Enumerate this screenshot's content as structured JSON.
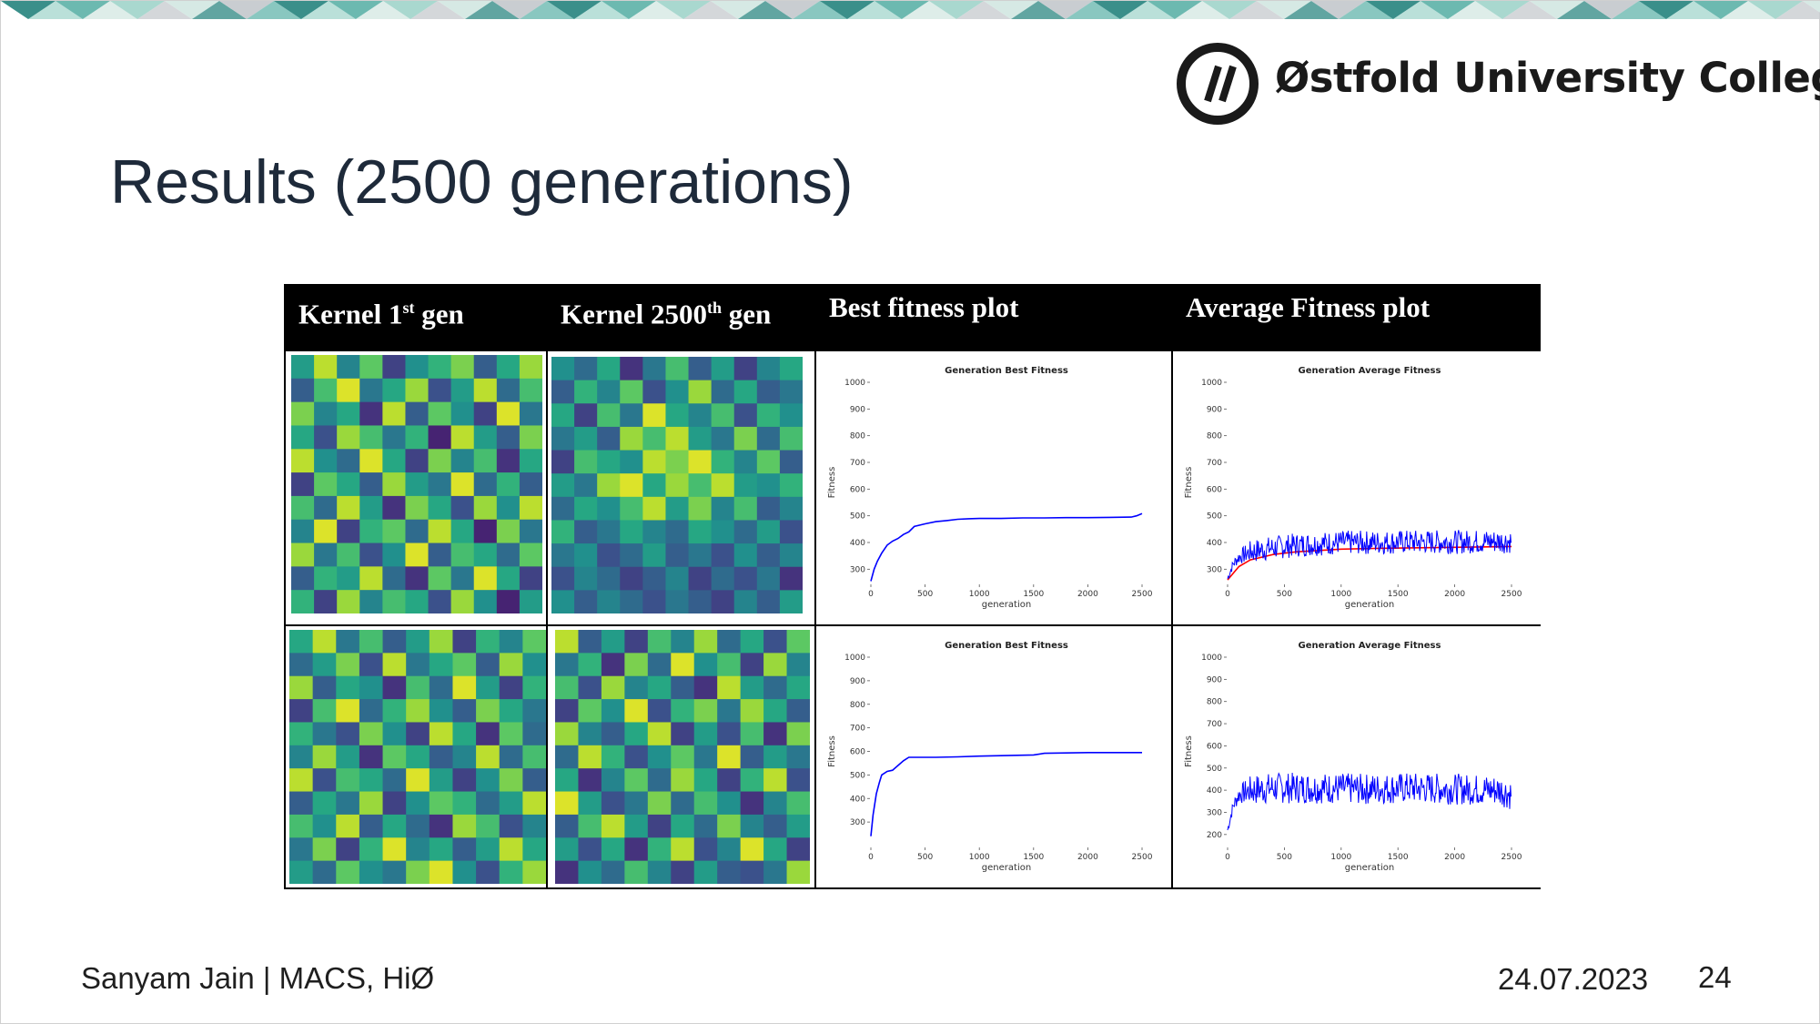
{
  "slide": {
    "title": "Results (2500 generations)",
    "logo_text": "Østfold University College",
    "footer_left": "Sanyam Jain | MACS, HiØ",
    "footer_date": "24.07.2023",
    "page_number": "24",
    "banner_colors": [
      "#3a8f8a",
      "#6cb9b0",
      "#a9d8cf",
      "#d6e9e4",
      "#c9cdd1"
    ]
  },
  "table": {
    "headers": [
      {
        "pre": "Kernel 1",
        "sup": "st",
        "post": " gen"
      },
      {
        "pre": "Kernel 2500",
        "sup": "th",
        "post": " gen"
      },
      {
        "pre": "Best fitness plot",
        "sup": "",
        "post": ""
      },
      {
        "pre": "Average Fitness plot",
        "sup": "",
        "post": ""
      }
    ]
  },
  "chart_data": [
    {
      "type": "heatmap",
      "id": "row1-kernel-1st-gen",
      "rows": 11,
      "cols": 11,
      "colormap": "viridis",
      "values": [
        [
          0.55,
          0.9,
          0.45,
          0.75,
          0.2,
          0.5,
          0.65,
          0.8,
          0.3,
          0.6,
          0.85
        ],
        [
          0.3,
          0.7,
          0.95,
          0.4,
          0.6,
          0.85,
          0.25,
          0.55,
          0.9,
          0.35,
          0.7
        ],
        [
          0.8,
          0.45,
          0.6,
          0.15,
          0.9,
          0.3,
          0.75,
          0.5,
          0.2,
          0.95,
          0.4
        ],
        [
          0.6,
          0.25,
          0.85,
          0.7,
          0.4,
          0.65,
          0.1,
          0.9,
          0.55,
          0.3,
          0.8
        ],
        [
          0.9,
          0.5,
          0.35,
          0.95,
          0.6,
          0.2,
          0.8,
          0.45,
          0.7,
          0.15,
          0.6
        ],
        [
          0.2,
          0.75,
          0.6,
          0.3,
          0.85,
          0.55,
          0.4,
          0.95,
          0.35,
          0.65,
          0.3
        ],
        [
          0.7,
          0.35,
          0.9,
          0.55,
          0.15,
          0.8,
          0.6,
          0.25,
          0.85,
          0.5,
          0.9
        ],
        [
          0.45,
          0.95,
          0.2,
          0.65,
          0.75,
          0.35,
          0.9,
          0.6,
          0.1,
          0.8,
          0.4
        ],
        [
          0.85,
          0.4,
          0.7,
          0.25,
          0.5,
          0.95,
          0.3,
          0.7,
          0.6,
          0.35,
          0.75
        ],
        [
          0.3,
          0.65,
          0.55,
          0.9,
          0.35,
          0.15,
          0.75,
          0.4,
          0.95,
          0.6,
          0.2
        ],
        [
          0.65,
          0.2,
          0.85,
          0.45,
          0.7,
          0.6,
          0.25,
          0.85,
          0.5,
          0.1,
          0.55
        ]
      ]
    },
    {
      "type": "heatmap",
      "id": "row1-kernel-2500th-gen",
      "rows": 11,
      "cols": 11,
      "colormap": "viridis",
      "values": [
        [
          0.5,
          0.35,
          0.6,
          0.15,
          0.4,
          0.7,
          0.3,
          0.55,
          0.2,
          0.45,
          0.6
        ],
        [
          0.3,
          0.65,
          0.45,
          0.75,
          0.25,
          0.5,
          0.85,
          0.35,
          0.6,
          0.3,
          0.4
        ],
        [
          0.6,
          0.2,
          0.7,
          0.4,
          0.95,
          0.6,
          0.45,
          0.7,
          0.25,
          0.65,
          0.5
        ],
        [
          0.4,
          0.55,
          0.3,
          0.85,
          0.7,
          0.9,
          0.55,
          0.4,
          0.8,
          0.35,
          0.7
        ],
        [
          0.2,
          0.7,
          0.6,
          0.5,
          0.9,
          0.8,
          0.95,
          0.65,
          0.45,
          0.75,
          0.3
        ],
        [
          0.55,
          0.4,
          0.85,
          0.95,
          0.6,
          0.85,
          0.7,
          0.9,
          0.55,
          0.5,
          0.65
        ],
        [
          0.35,
          0.6,
          0.5,
          0.7,
          0.9,
          0.55,
          0.8,
          0.45,
          0.7,
          0.3,
          0.45
        ],
        [
          0.65,
          0.3,
          0.4,
          0.6,
          0.45,
          0.35,
          0.6,
          0.5,
          0.35,
          0.55,
          0.25
        ],
        [
          0.4,
          0.5,
          0.25,
          0.35,
          0.55,
          0.3,
          0.4,
          0.25,
          0.5,
          0.3,
          0.45
        ],
        [
          0.25,
          0.45,
          0.35,
          0.2,
          0.3,
          0.45,
          0.2,
          0.35,
          0.25,
          0.4,
          0.15
        ],
        [
          0.5,
          0.3,
          0.45,
          0.35,
          0.25,
          0.4,
          0.3,
          0.2,
          0.45,
          0.3,
          0.55
        ]
      ]
    },
    {
      "type": "line",
      "id": "row1-best-fitness",
      "title": "Generation Best Fitness",
      "xlabel": "generation",
      "ylabel": "Fitness",
      "xlim": [
        0,
        2500
      ],
      "ylim": [
        250,
        1000
      ],
      "x_ticks": [
        0,
        500,
        1000,
        1500,
        2000,
        2500
      ],
      "y_ticks": [
        300,
        400,
        500,
        600,
        700,
        800,
        900,
        1000
      ],
      "series": [
        {
          "color": "#0000ff",
          "noise": 0,
          "x": [
            0,
            30,
            60,
            100,
            150,
            200,
            250,
            300,
            350,
            400,
            500,
            600,
            700,
            800,
            900,
            1000,
            1200,
            1400,
            1600,
            1800,
            2000,
            2200,
            2400,
            2450,
            2500
          ],
          "y": [
            255,
            300,
            330,
            360,
            390,
            405,
            415,
            430,
            440,
            460,
            470,
            478,
            482,
            487,
            489,
            490,
            490,
            492,
            492,
            493,
            493,
            494,
            495,
            500,
            508
          ]
        }
      ]
    },
    {
      "type": "line",
      "id": "row1-average-fitness",
      "title": "Generation Average Fitness",
      "xlabel": "generation",
      "ylabel": "Fitness",
      "xlim": [
        0,
        2500
      ],
      "ylim": [
        250,
        1000
      ],
      "x_ticks": [
        0,
        500,
        1000,
        1500,
        2000,
        2500
      ],
      "y_ticks": [
        300,
        400,
        500,
        600,
        700,
        800,
        900,
        1000
      ],
      "series": [
        {
          "color": "#ff0000",
          "noise": 0,
          "x": [
            0,
            100,
            200,
            400,
            600,
            800,
            1000,
            1300,
            1600,
            2000,
            2500
          ],
          "y": [
            260,
            310,
            335,
            355,
            365,
            370,
            375,
            378,
            380,
            382,
            385
          ]
        },
        {
          "color": "#0000ff",
          "noise": 45,
          "x": [
            0,
            50,
            100,
            200,
            400,
            600,
            800,
            1000,
            1300,
            1600,
            2000,
            2500
          ],
          "y": [
            265,
            320,
            345,
            365,
            380,
            390,
            395,
            400,
            400,
            402,
            402,
            405
          ]
        }
      ]
    },
    {
      "type": "heatmap",
      "id": "row2-kernel-1st-gen",
      "rows": 11,
      "cols": 11,
      "colormap": "viridis",
      "values": [
        [
          0.6,
          0.9,
          0.4,
          0.7,
          0.3,
          0.55,
          0.85,
          0.2,
          0.65,
          0.45,
          0.75
        ],
        [
          0.35,
          0.55,
          0.8,
          0.25,
          0.9,
          0.4,
          0.6,
          0.75,
          0.3,
          0.85,
          0.5
        ],
        [
          0.85,
          0.3,
          0.6,
          0.5,
          0.15,
          0.7,
          0.35,
          0.95,
          0.55,
          0.2,
          0.65
        ],
        [
          0.2,
          0.7,
          0.95,
          0.35,
          0.65,
          0.85,
          0.5,
          0.3,
          0.8,
          0.6,
          0.4
        ],
        [
          0.65,
          0.4,
          0.25,
          0.8,
          0.5,
          0.2,
          0.9,
          0.6,
          0.15,
          0.75,
          0.35
        ],
        [
          0.45,
          0.85,
          0.55,
          0.15,
          0.75,
          0.6,
          0.3,
          0.45,
          0.9,
          0.35,
          0.7
        ],
        [
          0.9,
          0.25,
          0.7,
          0.6,
          0.35,
          0.95,
          0.55,
          0.2,
          0.5,
          0.8,
          0.3
        ],
        [
          0.3,
          0.6,
          0.4,
          0.85,
          0.2,
          0.5,
          0.75,
          0.65,
          0.35,
          0.55,
          0.9
        ],
        [
          0.7,
          0.5,
          0.9,
          0.3,
          0.6,
          0.35,
          0.15,
          0.85,
          0.7,
          0.25,
          0.45
        ],
        [
          0.4,
          0.8,
          0.2,
          0.65,
          0.95,
          0.45,
          0.6,
          0.3,
          0.55,
          0.9,
          0.6
        ],
        [
          0.55,
          0.35,
          0.75,
          0.5,
          0.4,
          0.8,
          0.95,
          0.5,
          0.25,
          0.65,
          0.85
        ]
      ]
    },
    {
      "type": "heatmap",
      "id": "row2-kernel-2500th-gen",
      "rows": 11,
      "cols": 11,
      "colormap": "viridis",
      "values": [
        [
          0.9,
          0.3,
          0.55,
          0.2,
          0.7,
          0.45,
          0.85,
          0.35,
          0.6,
          0.25,
          0.75
        ],
        [
          0.4,
          0.65,
          0.15,
          0.8,
          0.35,
          0.95,
          0.5,
          0.7,
          0.2,
          0.85,
          0.45
        ],
        [
          0.7,
          0.25,
          0.85,
          0.45,
          0.6,
          0.3,
          0.15,
          0.9,
          0.55,
          0.35,
          0.6
        ],
        [
          0.2,
          0.75,
          0.5,
          0.95,
          0.25,
          0.65,
          0.8,
          0.4,
          0.85,
          0.6,
          0.3
        ],
        [
          0.85,
          0.45,
          0.3,
          0.6,
          0.9,
          0.2,
          0.55,
          0.25,
          0.7,
          0.15,
          0.8
        ],
        [
          0.35,
          0.9,
          0.65,
          0.25,
          0.5,
          0.75,
          0.4,
          0.95,
          0.3,
          0.55,
          0.4
        ],
        [
          0.6,
          0.15,
          0.45,
          0.75,
          0.35,
          0.85,
          0.6,
          0.2,
          0.65,
          0.9,
          0.25
        ],
        [
          0.95,
          0.55,
          0.25,
          0.4,
          0.8,
          0.35,
          0.7,
          0.5,
          0.15,
          0.45,
          0.7
        ],
        [
          0.3,
          0.7,
          0.9,
          0.55,
          0.2,
          0.6,
          0.35,
          0.8,
          0.45,
          0.3,
          0.55
        ],
        [
          0.55,
          0.25,
          0.6,
          0.15,
          0.65,
          0.9,
          0.25,
          0.45,
          0.95,
          0.6,
          0.2
        ],
        [
          0.15,
          0.5,
          0.35,
          0.7,
          0.45,
          0.2,
          0.55,
          0.3,
          0.25,
          0.4,
          0.85
        ]
      ]
    },
    {
      "type": "line",
      "id": "row2-best-fitness",
      "title": "Generation Best Fitness",
      "xlabel": "generation",
      "ylabel": "Fitness",
      "xlim": [
        0,
        2500
      ],
      "ylim": [
        200,
        1000
      ],
      "x_ticks": [
        0,
        500,
        1000,
        1500,
        2000,
        2500
      ],
      "y_ticks": [
        300,
        400,
        500,
        600,
        700,
        800,
        900,
        1000
      ],
      "series": [
        {
          "color": "#0000ff",
          "noise": 0,
          "x": [
            0,
            20,
            50,
            80,
            100,
            150,
            200,
            250,
            300,
            350,
            400,
            600,
            800,
            1000,
            1200,
            1500,
            1600,
            2000,
            2500
          ],
          "y": [
            240,
            330,
            420,
            470,
            500,
            515,
            520,
            540,
            560,
            575,
            575,
            575,
            577,
            580,
            582,
            585,
            592,
            595,
            595
          ]
        }
      ]
    },
    {
      "type": "line",
      "id": "row2-average-fitness",
      "title": "Generation Average Fitness",
      "xlabel": "generation",
      "ylabel": "Fitness",
      "xlim": [
        0,
        2500
      ],
      "ylim": [
        150,
        1000
      ],
      "x_ticks": [
        0,
        500,
        1000,
        1500,
        2000,
        2500
      ],
      "y_ticks": [
        200,
        300,
        400,
        500,
        600,
        700,
        800,
        900,
        1000
      ],
      "series": [
        {
          "color": "#0000ff",
          "noise": 70,
          "x": [
            0,
            50,
            100,
            200,
            400,
            800,
            1200,
            1600,
            2000,
            2400,
            2500
          ],
          "y": [
            220,
            330,
            380,
            400,
            410,
            410,
            405,
            410,
            405,
            400,
            380
          ]
        }
      ]
    }
  ]
}
